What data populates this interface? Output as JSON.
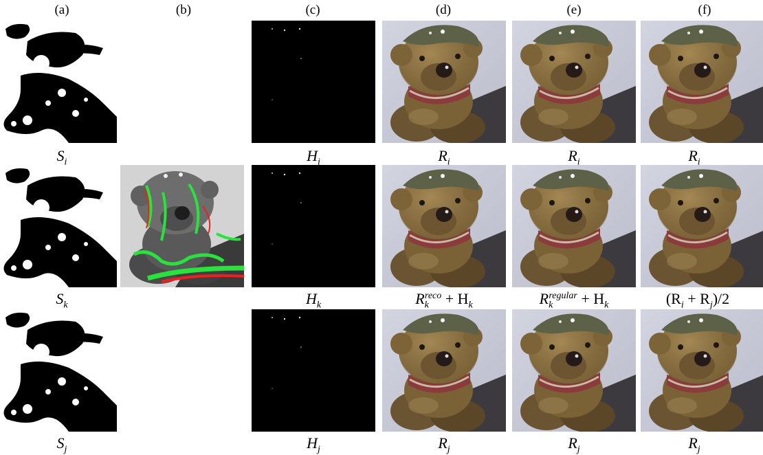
{
  "figure": {
    "columns": [
      {
        "id": "a",
        "header": "(a)"
      },
      {
        "id": "b",
        "header": "(b)"
      },
      {
        "id": "c",
        "header": "(c)"
      },
      {
        "id": "d",
        "header": "(d)"
      },
      {
        "id": "e",
        "header": "(e)"
      },
      {
        "id": "f",
        "header": "(f)"
      }
    ],
    "captions": {
      "row1": {
        "a": {
          "base": "S",
          "sub": "i"
        },
        "c": {
          "base": "H",
          "sub": "i"
        },
        "d": {
          "base": "R",
          "sub": "i"
        },
        "e": {
          "base": "R",
          "sub": "i"
        },
        "f": {
          "base": "R",
          "sub": "i"
        }
      },
      "row2": {
        "a": {
          "base": "S",
          "sub": "k"
        },
        "c": {
          "base": "H",
          "sub": "k"
        },
        "d": {
          "base": "R",
          "sub": "k",
          "sup": "reco",
          "rest": " + H",
          "rest_sub": "k"
        },
        "e": {
          "base": "R",
          "sub": "k",
          "sup": "regular",
          "rest": " + H",
          "rest_sub": "k"
        },
        "f": {
          "text": "(R",
          "sub1": "i",
          "mid": " + R",
          "sub2": "j",
          "tail": ")/2"
        }
      },
      "row3": {
        "a": {
          "base": "S",
          "sub": "j"
        },
        "c": {
          "base": "H",
          "sub": "j"
        },
        "d": {
          "base": "R",
          "sub": "j"
        },
        "e": {
          "base": "R",
          "sub": "j"
        },
        "f": {
          "base": "R",
          "sub": "j"
        }
      }
    },
    "panel_types": {
      "a": "binary shadow mask",
      "b": "grayscale with green/red overlay",
      "c": "black highlight map",
      "d": "color teddy bear photo",
      "e": "color teddy bear photo",
      "f": "color teddy bear photo"
    }
  }
}
